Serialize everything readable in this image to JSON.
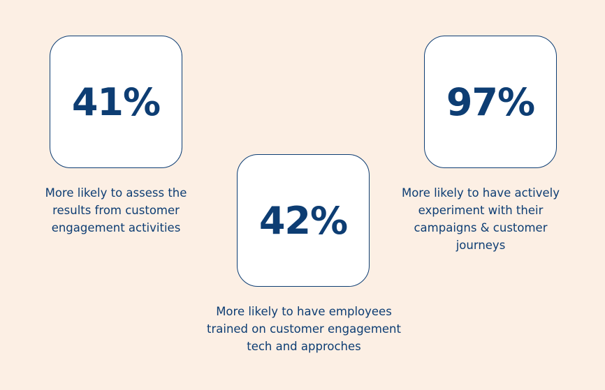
{
  "colors": {
    "background": "#fcefe4",
    "accent": "#0d3d73",
    "card": "#ffffff"
  },
  "stats": [
    {
      "value": "41%",
      "caption_lines": [
        "More likely to assess the",
        "results from customer",
        "engagement activities"
      ]
    },
    {
      "value": "42%",
      "caption_lines": [
        "More likely to have employees",
        "trained on customer engagement",
        "tech and approches"
      ]
    },
    {
      "value": "97%",
      "caption_lines": [
        "More likely to have actively",
        "experiment with their",
        "campaigns & customer",
        "journeys"
      ]
    }
  ]
}
